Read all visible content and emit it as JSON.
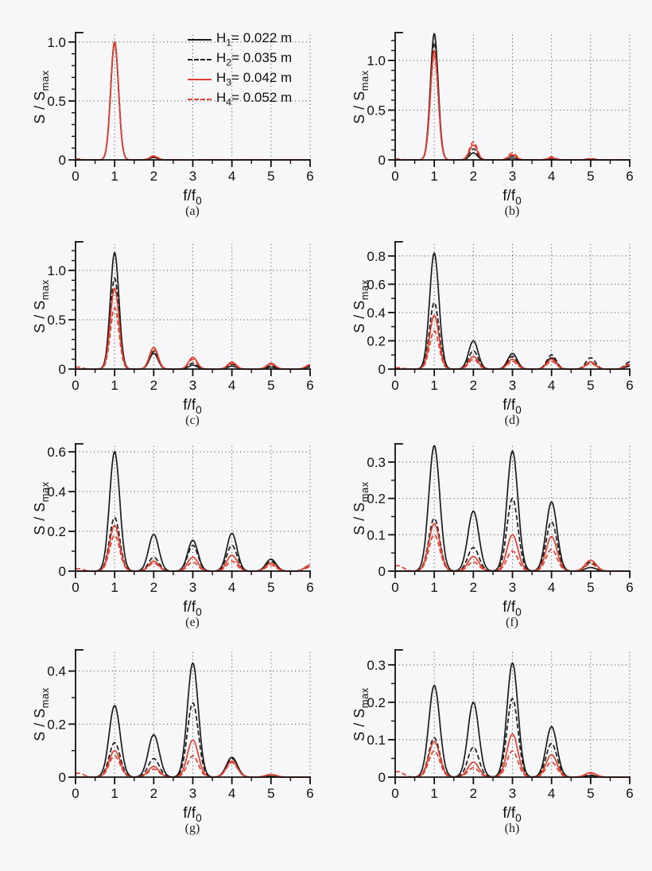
{
  "figure": {
    "background": "#f7f7f9",
    "text_color": "#111111",
    "grid_style": "dotted"
  },
  "chart_data": {
    "type": "line",
    "title": "",
    "xlabel": {
      "pre": "f/f",
      "sub": "0"
    },
    "ylabel": {
      "pre": "S / S",
      "sub": "max"
    },
    "xlim": [
      0,
      6
    ],
    "xticks": [
      "0",
      "1",
      "2",
      "3",
      "4",
      "5",
      "6"
    ],
    "x_minor_step": 0.5,
    "grid": "dotted vertical at x=1..6 and horizontal at labeled y ticks",
    "legend_position": "top-right inside subplot (a)",
    "series": [
      {
        "id": "H1",
        "color": "#1c1c1c",
        "dash": "solid",
        "label": {
          "pre": "H",
          "sub": "1",
          "rest": "= 0.022 m"
        }
      },
      {
        "id": "H2",
        "color": "#1c1c1c",
        "dash": "dashed",
        "label": {
          "pre": "H",
          "sub": "2",
          "rest": "= 0.035 m"
        }
      },
      {
        "id": "H3",
        "color": "#e0402f",
        "dash": "solid",
        "label": {
          "pre": "H",
          "sub": "3",
          "rest": "= 0.042 m"
        }
      },
      {
        "id": "H4",
        "color": "#e0402f",
        "dash": "dashed",
        "label": {
          "pre": "H",
          "sub": "4",
          "rest": "= 0.052 m"
        }
      }
    ],
    "peak_note": "peaks are [f/f0 position, S/Smax height]; curves are narrow resonance peaks",
    "charts": [
      {
        "caption": "(a)",
        "ylim": [
          0,
          1.08
        ],
        "yminor": 0.1,
        "sigma": 0.1,
        "yticks": [
          {
            "v": 0,
            "t": "0"
          },
          {
            "v": 0.5,
            "t": "0.5"
          },
          {
            "v": 1.0,
            "t": "1.0"
          }
        ],
        "peaks": {
          "H1": [
            [
              1,
              1.0
            ],
            [
              2,
              0.02
            ]
          ],
          "H2": [
            [
              1,
              1.0
            ],
            [
              2,
              0.025
            ]
          ],
          "H3": [
            [
              1,
              1.0
            ],
            [
              2,
              0.03
            ]
          ],
          "H4": [
            [
              0.07,
              0.008
            ],
            [
              1,
              0.99
            ],
            [
              2,
              0.035
            ]
          ]
        }
      },
      {
        "caption": "(b)",
        "ylim": [
          0,
          1.28
        ],
        "yminor": 0.1,
        "sigma": 0.1,
        "yticks": [
          {
            "v": 0,
            "t": "0"
          },
          {
            "v": 0.5,
            "t": "0.5"
          },
          {
            "v": 1.0,
            "t": "1.0"
          }
        ],
        "peaks": {
          "H1": [
            [
              1,
              1.27
            ],
            [
              2,
              0.07
            ],
            [
              3,
              0.02
            ],
            [
              4,
              0.008
            ],
            [
              5,
              0.005
            ]
          ],
          "H2": [
            [
              1,
              1.18
            ],
            [
              2,
              0.11
            ],
            [
              3,
              0.04
            ],
            [
              4,
              0.015
            ],
            [
              5,
              0.008
            ]
          ],
          "H3": [
            [
              1,
              1.1
            ],
            [
              2,
              0.15
            ],
            [
              3,
              0.05
            ],
            [
              4,
              0.02
            ],
            [
              5,
              0.01
            ]
          ],
          "H4": [
            [
              0.07,
              0.008
            ],
            [
              1,
              1.05
            ],
            [
              2,
              0.18
            ],
            [
              3,
              0.07
            ],
            [
              4,
              0.03
            ],
            [
              5,
              0.015
            ]
          ]
        }
      },
      {
        "caption": "(c)",
        "ylim": [
          0,
          1.29
        ],
        "yminor": 0.1,
        "sigma": 0.11,
        "yticks": [
          {
            "v": 0,
            "t": "0"
          },
          {
            "v": 0.5,
            "t": "0.5"
          },
          {
            "v": 1.0,
            "t": "1.0"
          }
        ],
        "peaks": {
          "H1": [
            [
              1,
              1.18
            ],
            [
              2,
              0.16
            ],
            [
              3,
              0.04
            ],
            [
              4,
              0.03
            ],
            [
              5,
              0.02
            ],
            [
              6,
              0.02
            ]
          ],
          "H2": [
            [
              1,
              0.92
            ],
            [
              2,
              0.18
            ],
            [
              3,
              0.06
            ],
            [
              4,
              0.05
            ],
            [
              5,
              0.035
            ],
            [
              6,
              0.03
            ]
          ],
          "H3": [
            [
              1,
              0.82
            ],
            [
              2,
              0.22
            ],
            [
              3,
              0.12
            ],
            [
              4,
              0.07
            ],
            [
              5,
              0.06
            ],
            [
              6,
              0.045
            ]
          ],
          "H4": [
            [
              0.07,
              0.02
            ],
            [
              1,
              0.62
            ],
            [
              2,
              0.2
            ],
            [
              3,
              0.1
            ],
            [
              4,
              0.055
            ],
            [
              5,
              0.05
            ],
            [
              6,
              0.04
            ]
          ]
        }
      },
      {
        "caption": "(d)",
        "ylim": [
          0,
          0.9
        ],
        "yminor": 0.1,
        "sigma": 0.12,
        "yticks": [
          {
            "v": 0,
            "t": "0"
          },
          {
            "v": 0.2,
            "t": "0.2"
          },
          {
            "v": 0.4,
            "t": "0.4"
          },
          {
            "v": 0.6,
            "t": "0.6"
          },
          {
            "v": 0.8,
            "t": "0.8"
          }
        ],
        "peaks": {
          "H1": [
            [
              1,
              0.82
            ],
            [
              2,
              0.2
            ],
            [
              3,
              0.11
            ],
            [
              4,
              0.08
            ],
            [
              5,
              0.05
            ],
            [
              6,
              0.02
            ]
          ],
          "H2": [
            [
              1,
              0.47
            ],
            [
              2,
              0.13
            ],
            [
              3,
              0.09
            ],
            [
              4,
              0.1
            ],
            [
              5,
              0.08
            ],
            [
              6,
              0.05
            ]
          ],
          "H3": [
            [
              1,
              0.38
            ],
            [
              2,
              0.09
            ],
            [
              3,
              0.07
            ],
            [
              4,
              0.07
            ],
            [
              5,
              0.05
            ],
            [
              6,
              0.035
            ]
          ],
          "H4": [
            [
              0.07,
              0.01
            ],
            [
              1,
              0.27
            ],
            [
              2,
              0.07
            ],
            [
              3,
              0.055
            ],
            [
              4,
              0.055
            ],
            [
              5,
              0.04
            ],
            [
              6,
              0.03
            ]
          ]
        }
      },
      {
        "caption": "(e)",
        "ylim": [
          0,
          0.64
        ],
        "yminor": 0.1,
        "sigma": 0.13,
        "yticks": [
          {
            "v": 0,
            "t": "0"
          },
          {
            "v": 0.2,
            "t": "0.2"
          },
          {
            "v": 0.4,
            "t": "0.4"
          },
          {
            "v": 0.6,
            "t": "0.6"
          }
        ],
        "peaks": {
          "H1": [
            [
              1,
              0.6
            ],
            [
              2,
              0.185
            ],
            [
              3,
              0.155
            ],
            [
              4,
              0.19
            ],
            [
              5,
              0.06
            ],
            [
              6,
              0.03
            ]
          ],
          "H2": [
            [
              1,
              0.27
            ],
            [
              2,
              0.07
            ],
            [
              3,
              0.13
            ],
            [
              4,
              0.13
            ],
            [
              5,
              0.05
            ],
            [
              6,
              0.025
            ]
          ],
          "H3": [
            [
              1,
              0.23
            ],
            [
              2,
              0.05
            ],
            [
              3,
              0.07
            ],
            [
              4,
              0.08
            ],
            [
              5,
              0.04
            ],
            [
              6,
              0.03
            ]
          ],
          "H4": [
            [
              0.07,
              0.012
            ],
            [
              1,
              0.18
            ],
            [
              2,
              0.04
            ],
            [
              3,
              0.045
            ],
            [
              4,
              0.05
            ],
            [
              5,
              0.03
            ],
            [
              6,
              0.02
            ]
          ]
        }
      },
      {
        "caption": "(f)",
        "ylim": [
          0,
          0.35
        ],
        "yminor": 0.05,
        "sigma": 0.14,
        "yticks": [
          {
            "v": 0,
            "t": "0"
          },
          {
            "v": 0.1,
            "t": "0.1"
          },
          {
            "v": 0.2,
            "t": "0.2"
          },
          {
            "v": 0.3,
            "t": "0.3"
          }
        ],
        "peaks": {
          "H1": [
            [
              1,
              0.345
            ],
            [
              2,
              0.165
            ],
            [
              3,
              0.33
            ],
            [
              4,
              0.19
            ],
            [
              5,
              0.01
            ]
          ],
          "H2": [
            [
              1,
              0.145
            ],
            [
              2,
              0.065
            ],
            [
              3,
              0.2
            ],
            [
              4,
              0.135
            ],
            [
              5,
              0.025
            ]
          ],
          "H3": [
            [
              1,
              0.13
            ],
            [
              2,
              0.04
            ],
            [
              3,
              0.1
            ],
            [
              4,
              0.095
            ],
            [
              5,
              0.03
            ]
          ],
          "H4": [
            [
              0.07,
              0.015
            ],
            [
              1,
              0.1
            ],
            [
              2,
              0.025
            ],
            [
              3,
              0.055
            ],
            [
              4,
              0.06
            ],
            [
              5,
              0.02
            ]
          ]
        }
      },
      {
        "caption": "(g)",
        "ylim": [
          0,
          0.48
        ],
        "yminor": 0.1,
        "sigma": 0.14,
        "yticks": [
          {
            "v": 0,
            "t": "0"
          },
          {
            "v": 0.2,
            "t": "0.2"
          },
          {
            "v": 0.4,
            "t": "0.4"
          }
        ],
        "peaks": {
          "H1": [
            [
              1,
              0.27
            ],
            [
              2,
              0.16
            ],
            [
              3,
              0.43
            ],
            [
              4,
              0.075
            ],
            [
              5,
              0.003
            ]
          ],
          "H2": [
            [
              1,
              0.13
            ],
            [
              2,
              0.07
            ],
            [
              3,
              0.28
            ],
            [
              4,
              0.07
            ],
            [
              5,
              0.004
            ]
          ],
          "H3": [
            [
              1,
              0.1
            ],
            [
              2,
              0.04
            ],
            [
              3,
              0.14
            ],
            [
              4,
              0.06
            ],
            [
              5,
              0.01
            ]
          ],
          "H4": [
            [
              0.07,
              0.015
            ],
            [
              1,
              0.08
            ],
            [
              2,
              0.03
            ],
            [
              3,
              0.08
            ],
            [
              4,
              0.055
            ],
            [
              5,
              0.01
            ]
          ]
        }
      },
      {
        "caption": "(h)",
        "ylim": [
          0,
          0.34
        ],
        "yminor": 0.05,
        "sigma": 0.14,
        "yticks": [
          {
            "v": 0,
            "t": "0"
          },
          {
            "v": 0.1,
            "t": "0.1"
          },
          {
            "v": 0.2,
            "t": "0.2"
          },
          {
            "v": 0.3,
            "t": "0.3"
          }
        ],
        "peaks": {
          "H1": [
            [
              1,
              0.245
            ],
            [
              2,
              0.2
            ],
            [
              3,
              0.305
            ],
            [
              4,
              0.135
            ],
            [
              5,
              0.004
            ]
          ],
          "H2": [
            [
              1,
              0.105
            ],
            [
              2,
              0.08
            ],
            [
              3,
              0.21
            ],
            [
              4,
              0.09
            ],
            [
              5,
              0.005
            ]
          ],
          "H3": [
            [
              1,
              0.095
            ],
            [
              2,
              0.04
            ],
            [
              3,
              0.115
            ],
            [
              4,
              0.06
            ],
            [
              5,
              0.012
            ]
          ],
          "H4": [
            [
              0.07,
              0.015
            ],
            [
              1,
              0.07
            ],
            [
              2,
              0.025
            ],
            [
              3,
              0.07
            ],
            [
              4,
              0.04
            ],
            [
              5,
              0.01
            ]
          ]
        }
      }
    ]
  }
}
